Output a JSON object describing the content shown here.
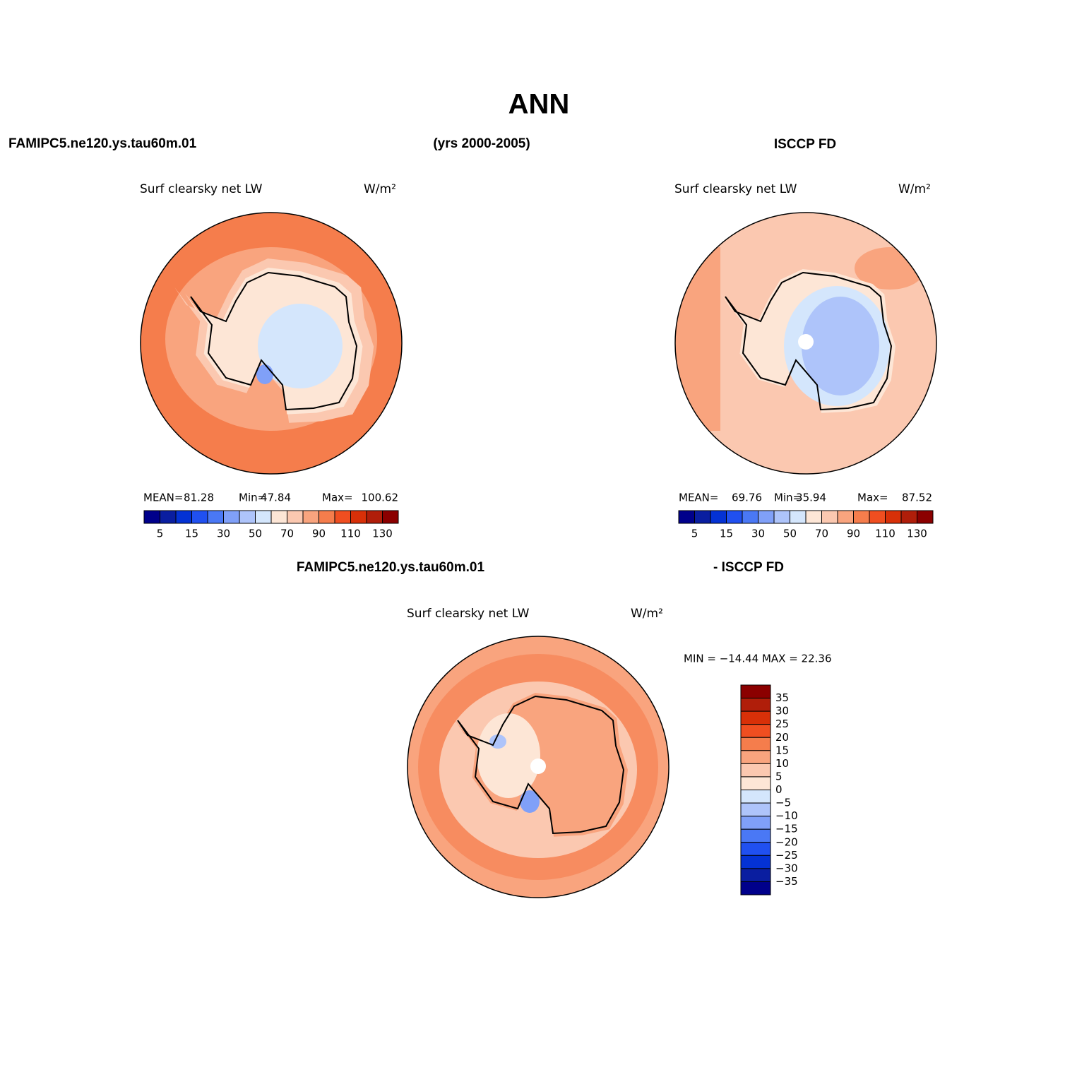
{
  "header": {
    "title": "ANN",
    "left": "FAMIPC5.ne120.ys.tau60m.01",
    "center": "(yrs 2000-2005)",
    "right": "ISCCP FD"
  },
  "panels": [
    {
      "variable": "Surf clearsky net LW",
      "units": "W/m²",
      "stats": [
        "MEAN=",
        "81.28",
        "Min=",
        "47.84",
        "Max=",
        "100.62"
      ],
      "colorbar": {
        "labels": [
          "5",
          "15",
          "30",
          "50",
          "70",
          "90",
          "110",
          "130"
        ],
        "colors": [
          "#00008b",
          "#0a1ea0",
          "#0432d4",
          "#2050f0",
          "#4a78f5",
          "#80a0f8",
          "#aec4fa",
          "#d4e6fc",
          "#fde6d6",
          "#fbc8b0",
          "#f9a47e",
          "#f57d4c",
          "#f04e20",
          "#d83008",
          "#b01e0a",
          "#8b0000"
        ]
      }
    },
    {
      "variable": "Surf clearsky net LW",
      "units": "W/m²",
      "stats": [
        "MEAN=",
        "69.76",
        "Min=",
        "35.94",
        "Max=",
        "87.52"
      ],
      "colorbar": {
        "labels": [
          "5",
          "15",
          "30",
          "50",
          "70",
          "90",
          "110",
          "130"
        ],
        "colors": [
          "#00008b",
          "#0a1ea0",
          "#0432d4",
          "#2050f0",
          "#4a78f5",
          "#80a0f8",
          "#aec4fa",
          "#d4e6fc",
          "#fde6d6",
          "#fbc8b0",
          "#f9a47e",
          "#f57d4c",
          "#f04e20",
          "#d83008",
          "#b01e0a",
          "#8b0000"
        ]
      }
    }
  ],
  "diff": {
    "left": "FAMIPC5.ne120.ys.tau60m.01",
    "right": "- ISCCP FD",
    "variable": "Surf clearsky net LW",
    "units": "W/m²",
    "stats": "MIN = −14.44 MAX =  22.36",
    "colorbar": {
      "labels": [
        "35",
        "30",
        "25",
        "20",
        "15",
        "10",
        "5",
        "0",
        "−5",
        "−10",
        "−15",
        "−20",
        "−25",
        "−30",
        "−35"
      ],
      "colors": [
        "#8b0000",
        "#b01e0a",
        "#d83008",
        "#f04e20",
        "#f57d4c",
        "#f9a47e",
        "#fbc8b0",
        "#fde6d6",
        "#d4e6fc",
        "#aec4fa",
        "#80a0f8",
        "#4a78f5",
        "#2050f0",
        "#0432d4",
        "#0a1ea0",
        "#00008b"
      ]
    }
  }
}
